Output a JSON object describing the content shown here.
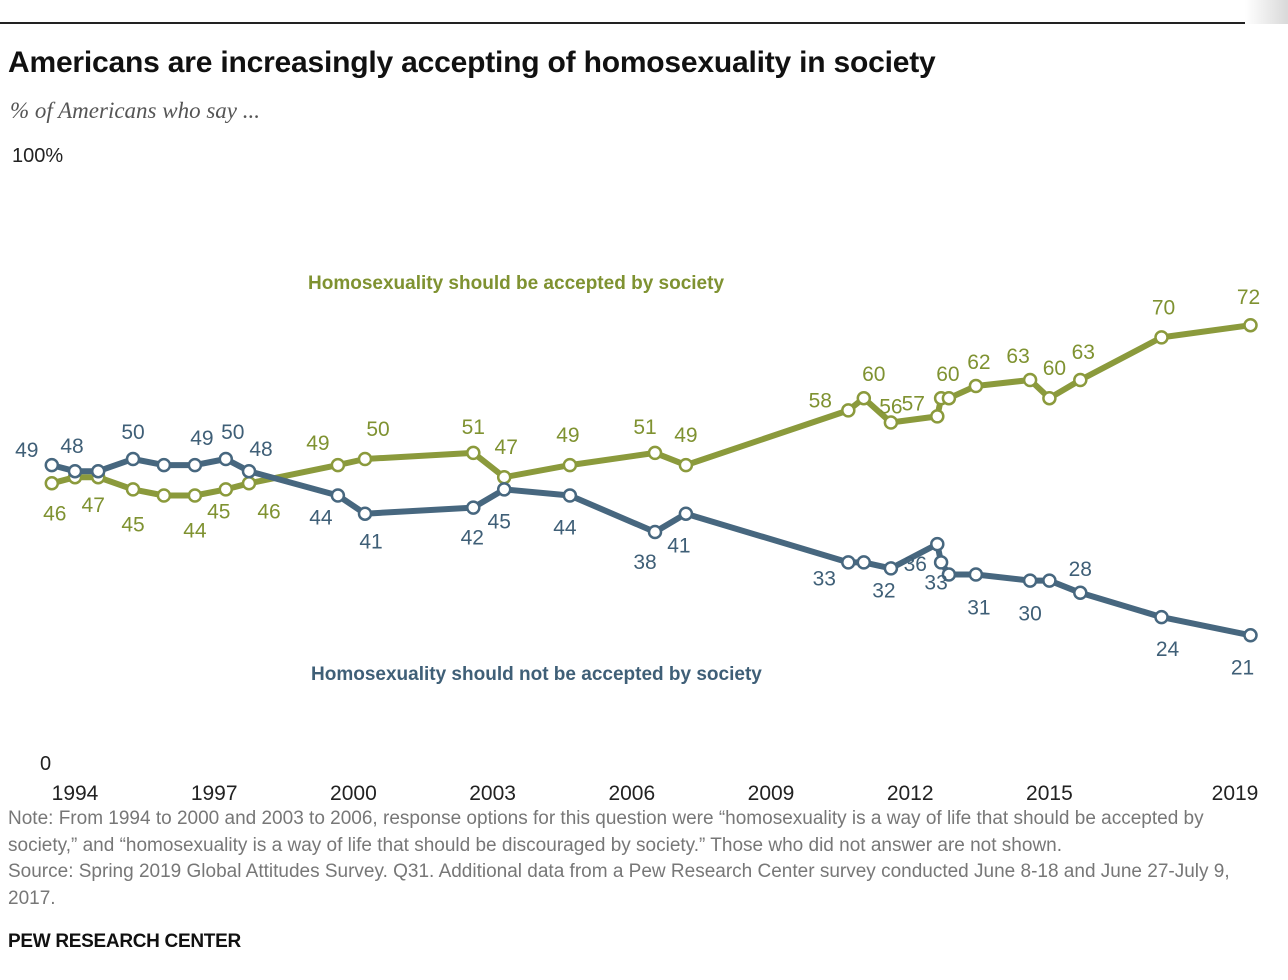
{
  "header": {
    "title": "Americans are increasingly accepting of homosexuality in society",
    "subtitle": "% of Americans who say ..."
  },
  "footer": {
    "note": "Note: From 1994 to 2000 and 2003 to 2006, response options for this question were “homosexuality is a way of life that should be accepted by society,” and “homosexuality is a way of life that should be discouraged by society.” Those who did not answer are not shown.",
    "source": "Source: Spring 2019 Global Attitudes Survey. Q31. Additional data from a Pew Research Center survey conducted June 8-18 and June 27-July 9, 2017.",
    "brand": "PEW RESEARCH CENTER"
  },
  "colors": {
    "accepted": "#8b9a3c",
    "accepted_label": "#7f9231",
    "not_accepted": "#47677f",
    "not_accepted_label": "#3f5f77"
  },
  "chart_data": {
    "type": "line",
    "ylim": [
      0,
      100
    ],
    "y_ticks": [
      "100%",
      "0"
    ],
    "x_ticks": [
      "1994",
      "1997",
      "2000",
      "2003",
      "2006",
      "2009",
      "2012",
      "2015",
      "2019"
    ],
    "grid": false,
    "series": [
      {
        "name": "Homosexuality should be accepted by society",
        "points": [
          {
            "date": "1993-07",
            "value": 46
          },
          {
            "date": "1994-01",
            "value": 47
          },
          {
            "date": "1994-07",
            "value": 47
          },
          {
            "date": "1995-04",
            "value": 45
          },
          {
            "date": "1995-12",
            "value": 44
          },
          {
            "date": "1996-08",
            "value": 44
          },
          {
            "date": "1997-04",
            "value": 45
          },
          {
            "date": "1997-10",
            "value": 46
          },
          {
            "date": "1999-09",
            "value": 49
          },
          {
            "date": "2000-04",
            "value": 50
          },
          {
            "date": "2002-08",
            "value": 51
          },
          {
            "date": "2003-04",
            "value": 47
          },
          {
            "date": "2004-09",
            "value": 49
          },
          {
            "date": "2006-07",
            "value": 51
          },
          {
            "date": "2007-03",
            "value": 49
          },
          {
            "date": "2010-09",
            "value": 58
          },
          {
            "date": "2011-01",
            "value": 60
          },
          {
            "date": "2011-08",
            "value": 56
          },
          {
            "date": "2012-08",
            "value": 57
          },
          {
            "date": "2012-09",
            "value": 60
          },
          {
            "date": "2012-11",
            "value": 60
          },
          {
            "date": "2013-06",
            "value": 62
          },
          {
            "date": "2014-08",
            "value": 63
          },
          {
            "date": "2015-01",
            "value": 60
          },
          {
            "date": "2015-09",
            "value": 63
          },
          {
            "date": "2017-06",
            "value": 70
          },
          {
            "date": "2019-05",
            "value": 72
          }
        ],
        "labels": [
          {
            "text": "46",
            "point": 0
          },
          {
            "text": "47",
            "point": 2
          },
          {
            "text": "45",
            "point": 3
          },
          {
            "text": "44",
            "point": 5
          },
          {
            "text": "45",
            "point": 6
          },
          {
            "text": "46",
            "point": 7
          },
          {
            "text": "49",
            "point": 8
          },
          {
            "text": "50",
            "point": 9
          },
          {
            "text": "51",
            "point": 10
          },
          {
            "text": "47",
            "point": 11
          },
          {
            "text": "49",
            "point": 12
          },
          {
            "text": "51",
            "point": 13
          },
          {
            "text": "49",
            "point": 14
          },
          {
            "text": "58",
            "point": 15
          },
          {
            "text": "60",
            "point": 16
          },
          {
            "text": "56",
            "point": 17
          },
          {
            "text": "57",
            "point": 18
          },
          {
            "text": "60",
            "point": 20
          },
          {
            "text": "62",
            "point": 21
          },
          {
            "text": "63",
            "point": 22
          },
          {
            "text": "60",
            "point": 23
          },
          {
            "text": "63",
            "point": 24
          },
          {
            "text": "70",
            "point": 25
          },
          {
            "text": "72",
            "point": 26
          }
        ]
      },
      {
        "name": "Homosexuality should not be accepted by society",
        "points": [
          {
            "date": "1993-07",
            "value": 49
          },
          {
            "date": "1994-01",
            "value": 48
          },
          {
            "date": "1994-07",
            "value": 48
          },
          {
            "date": "1995-04",
            "value": 50
          },
          {
            "date": "1995-12",
            "value": 49
          },
          {
            "date": "1996-08",
            "value": 49
          },
          {
            "date": "1997-04",
            "value": 50
          },
          {
            "date": "1997-10",
            "value": 48
          },
          {
            "date": "1999-09",
            "value": 44
          },
          {
            "date": "2000-04",
            "value": 41
          },
          {
            "date": "2002-08",
            "value": 42
          },
          {
            "date": "2003-04",
            "value": 45
          },
          {
            "date": "2004-09",
            "value": 44
          },
          {
            "date": "2006-07",
            "value": 38
          },
          {
            "date": "2007-03",
            "value": 41
          },
          {
            "date": "2010-09",
            "value": 33
          },
          {
            "date": "2011-01",
            "value": 33
          },
          {
            "date": "2011-08",
            "value": 32
          },
          {
            "date": "2012-08",
            "value": 36
          },
          {
            "date": "2012-09",
            "value": 33
          },
          {
            "date": "2012-11",
            "value": 31
          },
          {
            "date": "2013-06",
            "value": 31
          },
          {
            "date": "2014-08",
            "value": 30
          },
          {
            "date": "2015-01",
            "value": 30
          },
          {
            "date": "2015-09",
            "value": 28
          },
          {
            "date": "2017-06",
            "value": 24
          },
          {
            "date": "2019-05",
            "value": 21
          }
        ],
        "labels": [
          {
            "text": "49",
            "point": 0
          },
          {
            "text": "48",
            "point": 1
          },
          {
            "text": "50",
            "point": 3
          },
          {
            "text": "49",
            "point": 5
          },
          {
            "text": "50",
            "point": 6
          },
          {
            "text": "48",
            "point": 7
          },
          {
            "text": "44",
            "point": 8
          },
          {
            "text": "41",
            "point": 9
          },
          {
            "text": "42",
            "point": 10
          },
          {
            "text": "45",
            "point": 11
          },
          {
            "text": "44",
            "point": 12
          },
          {
            "text": "38",
            "point": 13
          },
          {
            "text": "41",
            "point": 14
          },
          {
            "text": "33",
            "point": 15
          },
          {
            "text": "32",
            "point": 17
          },
          {
            "text": "36",
            "point": 18
          },
          {
            "text": "33",
            "point": 19
          },
          {
            "text": "31",
            "point": 21
          },
          {
            "text": "30",
            "point": 22
          },
          {
            "text": "28",
            "point": 24
          },
          {
            "text": "24",
            "point": 25
          },
          {
            "text": "21",
            "point": 26
          }
        ]
      }
    ]
  }
}
